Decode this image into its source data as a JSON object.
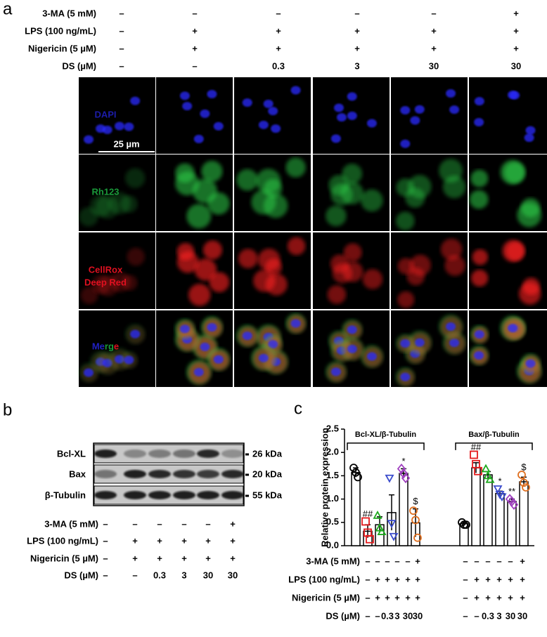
{
  "panel_labels": [
    "a",
    "b",
    "c"
  ],
  "panel_a": {
    "conditions": [
      {
        "label": "3-MA (5 mM)",
        "values": [
          "–",
          "–",
          "–",
          "–",
          "–",
          "+"
        ]
      },
      {
        "label": "LPS (100 ng/mL)",
        "values": [
          "–",
          "+",
          "+",
          "+",
          "+",
          "+"
        ]
      },
      {
        "label": "Nigericin (5 µM)",
        "values": [
          "–",
          "+",
          "+",
          "+",
          "+",
          "+"
        ]
      },
      {
        "label": "DS (µM)",
        "values": [
          "–",
          "–",
          "0.3",
          "3",
          "30",
          "30"
        ]
      }
    ],
    "channels": [
      {
        "lines": [
          "DAPI"
        ],
        "color": "#1c1ca8"
      },
      {
        "lines": [
          "Rh123"
        ],
        "color": "#1a9a3a"
      },
      {
        "lines": [
          "CellRox",
          "Deep Red"
        ],
        "color": "#e01020"
      },
      {
        "lines": [
          "Merge"
        ],
        "color": "merge"
      }
    ],
    "scale_bar": "25 µm"
  },
  "panel_b": {
    "proteins": [
      {
        "name": "Bcl-XL",
        "size": "26 kDa"
      },
      {
        "name": "Bax",
        "size": "20 kDa"
      },
      {
        "name": "β-Tubulin",
        "size": "55 kDa"
      }
    ],
    "conditions": [
      {
        "label": "3-MA (5 mM)",
        "values": [
          "–",
          "–",
          "–",
          "–",
          "–",
          "+"
        ]
      },
      {
        "label": "LPS (100 ng/mL)",
        "values": [
          "–",
          "+",
          "+",
          "+",
          "+",
          "+"
        ]
      },
      {
        "label": "Nigericin (5 µM)",
        "values": [
          "–",
          "+",
          "+",
          "+",
          "+",
          "+"
        ]
      },
      {
        "label": "DS (µM)",
        "values": [
          "–",
          "–",
          "0.3",
          "3",
          "30",
          "30"
        ]
      }
    ]
  },
  "chart_data": {
    "type": "bar",
    "ylabel": "Relative protein expression",
    "ylim": [
      0,
      2.5
    ],
    "yticks": [
      {
        "value": 0,
        "label": "0.0"
      },
      {
        "value": 0.5,
        "label": "0.5"
      },
      {
        "value": 1,
        "label": "1.0"
      },
      {
        "value": 1.5,
        "label": "1.5"
      },
      {
        "value": 2,
        "label": "2.0"
      },
      {
        "value": 2.5,
        "label": "2.5"
      }
    ],
    "colors": [
      "#000000",
      "#e41a1c",
      "#1ca81c",
      "#3b4ccc",
      "#a040c0",
      "#e07020"
    ],
    "markers": [
      "circle",
      "square",
      "triangle",
      "triangle-down",
      "diamond",
      "circle"
    ],
    "groups": [
      {
        "name": "Bcl-XL/β-Tubulin",
        "values": [
          1.57,
          0.31,
          0.45,
          0.71,
          1.55,
          0.49
        ],
        "errors": [
          0.1,
          0.14,
          0.17,
          0.38,
          0.1,
          0.3
        ],
        "points": [
          [
            1.67,
            1.57,
            1.47
          ],
          [
            0.52,
            0.28,
            0.14
          ],
          [
            0.65,
            0.38,
            0.3
          ],
          [
            1.45,
            0.48,
            0.2
          ],
          [
            1.65,
            1.55,
            1.45
          ],
          [
            0.75,
            0.55,
            0.17
          ]
        ],
        "annotations": [
          null,
          "##",
          null,
          null,
          "*",
          "$"
        ]
      },
      {
        "name": "Bax/β-Tubulin",
        "values": [
          0.47,
          1.67,
          1.52,
          1.12,
          0.95,
          1.37
        ],
        "errors": [
          0.03,
          0.11,
          0.07,
          0.05,
          0.05,
          0.1
        ],
        "points": [
          [
            0.5,
            0.45,
            0.45
          ],
          [
            1.95,
            1.75,
            1.6
          ],
          [
            1.65,
            1.5,
            1.42
          ],
          [
            1.22,
            1.1,
            1.05
          ],
          [
            1.0,
            0.95,
            0.88
          ],
          [
            1.52,
            1.35,
            1.25
          ]
        ],
        "annotations": [
          null,
          "##",
          null,
          "*",
          "**",
          "$"
        ]
      }
    ],
    "conditions": [
      {
        "label": "3-MA (5 mM)",
        "values": [
          "–",
          "–",
          "–",
          "–",
          "–",
          "+",
          "–",
          "–",
          "–",
          "–",
          "–",
          "+"
        ]
      },
      {
        "label": "LPS (100 ng/mL)",
        "values": [
          "–",
          "+",
          "+",
          "+",
          "+",
          "+",
          "–",
          "+",
          "+",
          "+",
          "+",
          "+"
        ]
      },
      {
        "label": "Nigericin (5 µM)",
        "values": [
          "–",
          "+",
          "+",
          "+",
          "+",
          "+",
          "–",
          "+",
          "+",
          "+",
          "+",
          "+"
        ]
      },
      {
        "label": "DS (µM)",
        "values": [
          "–",
          "–",
          "0.3",
          "3",
          "30",
          "30",
          "–",
          "–",
          "0.3",
          "3",
          "30",
          "30"
        ]
      }
    ]
  }
}
